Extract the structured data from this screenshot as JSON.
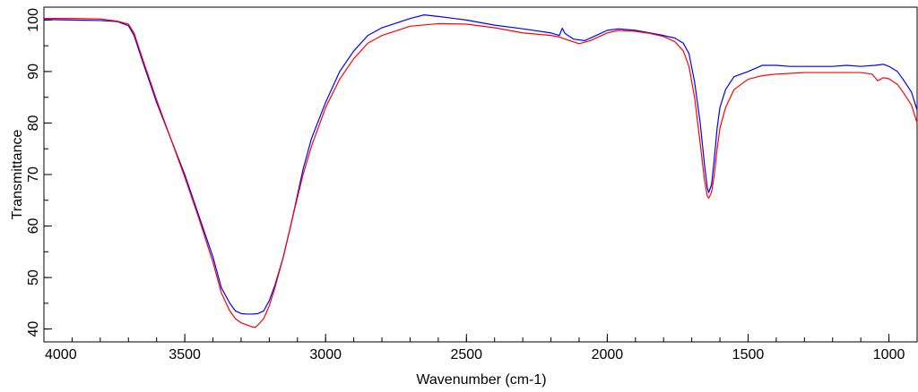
{
  "chart_data": {
    "type": "line",
    "xlabel": "Wavenumber (cm-1)",
    "ylabel": "Transmittance",
    "xlim": [
      4000,
      900
    ],
    "ylim": [
      37.5,
      102.5
    ],
    "x_ticks": [
      4000,
      3500,
      3000,
      2500,
      2000,
      1500,
      1000
    ],
    "x_minor_step": 100,
    "y_ticks": [
      40,
      50,
      60,
      70,
      80,
      90,
      100
    ],
    "y_minor_step": 5,
    "grid": false,
    "legend": "none",
    "series": [
      {
        "color": "#0000ff",
        "points": [
          [
            4000,
            100.1
          ],
          [
            3900,
            100.0
          ],
          [
            3800,
            99.9
          ],
          [
            3740,
            99.7
          ],
          [
            3700,
            98.9
          ],
          [
            3680,
            97.0
          ],
          [
            3650,
            92
          ],
          [
            3600,
            84
          ],
          [
            3550,
            77
          ],
          [
            3500,
            70
          ],
          [
            3450,
            62
          ],
          [
            3400,
            54
          ],
          [
            3370,
            48
          ],
          [
            3340,
            45
          ],
          [
            3320,
            43.5
          ],
          [
            3300,
            43.0
          ],
          [
            3280,
            42.9
          ],
          [
            3260,
            42.9
          ],
          [
            3240,
            43.0
          ],
          [
            3220,
            43.5
          ],
          [
            3200,
            45.5
          ],
          [
            3180,
            48.5
          ],
          [
            3150,
            54
          ],
          [
            3120,
            61
          ],
          [
            3100,
            66
          ],
          [
            3080,
            71
          ],
          [
            3050,
            77
          ],
          [
            3000,
            84
          ],
          [
            2950,
            90
          ],
          [
            2900,
            94
          ],
          [
            2850,
            97.0
          ],
          [
            2800,
            98.5
          ],
          [
            2700,
            100.3
          ],
          [
            2650,
            101.0
          ],
          [
            2600,
            100.7
          ],
          [
            2500,
            100.0
          ],
          [
            2400,
            99.0
          ],
          [
            2300,
            98.3
          ],
          [
            2200,
            97.5
          ],
          [
            2170,
            97.0
          ],
          [
            2160,
            98.4
          ],
          [
            2150,
            97.4
          ],
          [
            2120,
            96.3
          ],
          [
            2080,
            96.0
          ],
          [
            2060,
            96.5
          ],
          [
            2040,
            97.0
          ],
          [
            2000,
            98.0
          ],
          [
            1960,
            98.3
          ],
          [
            1900,
            98.0
          ],
          [
            1850,
            97.5
          ],
          [
            1800,
            97.0
          ],
          [
            1760,
            96.5
          ],
          [
            1730,
            95.5
          ],
          [
            1710,
            93.5
          ],
          [
            1690,
            88
          ],
          [
            1670,
            80
          ],
          [
            1655,
            72
          ],
          [
            1645,
            67.5
          ],
          [
            1640,
            66.5
          ],
          [
            1630,
            68
          ],
          [
            1620,
            73
          ],
          [
            1610,
            79
          ],
          [
            1600,
            83
          ],
          [
            1580,
            86.5
          ],
          [
            1550,
            89
          ],
          [
            1500,
            90
          ],
          [
            1450,
            91.2
          ],
          [
            1400,
            91.2
          ],
          [
            1350,
            91.0
          ],
          [
            1300,
            91.0
          ],
          [
            1250,
            91.0
          ],
          [
            1200,
            91.0
          ],
          [
            1150,
            91.2
          ],
          [
            1100,
            91.0
          ],
          [
            1050,
            91.2
          ],
          [
            1020,
            91.4
          ],
          [
            1000,
            91.0
          ],
          [
            970,
            90.0
          ],
          [
            950,
            88.5
          ],
          [
            920,
            86
          ],
          [
            900,
            82.5
          ]
        ]
      },
      {
        "color": "#ff0000",
        "points": [
          [
            4000,
            100.3
          ],
          [
            3900,
            100.3
          ],
          [
            3800,
            100.2
          ],
          [
            3740,
            99.8
          ],
          [
            3700,
            99.2
          ],
          [
            3680,
            97.5
          ],
          [
            3650,
            92.5
          ],
          [
            3600,
            84.5
          ],
          [
            3550,
            77
          ],
          [
            3500,
            69.5
          ],
          [
            3450,
            61.5
          ],
          [
            3400,
            53
          ],
          [
            3370,
            47
          ],
          [
            3340,
            43.5
          ],
          [
            3320,
            42.0
          ],
          [
            3300,
            41.2
          ],
          [
            3280,
            40.8
          ],
          [
            3260,
            40.4
          ],
          [
            3250,
            40.3
          ],
          [
            3240,
            40.8
          ],
          [
            3220,
            42.0
          ],
          [
            3200,
            44.5
          ],
          [
            3180,
            48
          ],
          [
            3150,
            54
          ],
          [
            3120,
            61
          ],
          [
            3100,
            65.5
          ],
          [
            3080,
            70
          ],
          [
            3050,
            75.5
          ],
          [
            3000,
            83
          ],
          [
            2950,
            88.5
          ],
          [
            2900,
            92.5
          ],
          [
            2850,
            95.5
          ],
          [
            2800,
            97.0
          ],
          [
            2700,
            98.8
          ],
          [
            2600,
            99.3
          ],
          [
            2500,
            99.2
          ],
          [
            2400,
            98.5
          ],
          [
            2300,
            97.5
          ],
          [
            2200,
            97.0
          ],
          [
            2170,
            96.7
          ],
          [
            2150,
            96.3
          ],
          [
            2100,
            95.4
          ],
          [
            2060,
            96.0
          ],
          [
            2000,
            97.5
          ],
          [
            1960,
            98.0
          ],
          [
            1900,
            97.8
          ],
          [
            1850,
            97.4
          ],
          [
            1800,
            96.8
          ],
          [
            1760,
            95.8
          ],
          [
            1730,
            94.0
          ],
          [
            1710,
            91.0
          ],
          [
            1690,
            85
          ],
          [
            1670,
            76
          ],
          [
            1655,
            69
          ],
          [
            1645,
            65.8
          ],
          [
            1640,
            65.4
          ],
          [
            1630,
            66.5
          ],
          [
            1620,
            70
          ],
          [
            1610,
            75
          ],
          [
            1600,
            79
          ],
          [
            1580,
            83
          ],
          [
            1550,
            86.5
          ],
          [
            1500,
            88.5
          ],
          [
            1450,
            89.2
          ],
          [
            1400,
            89.5
          ],
          [
            1300,
            89.8
          ],
          [
            1200,
            89.8
          ],
          [
            1100,
            89.8
          ],
          [
            1060,
            89.5
          ],
          [
            1040,
            88.2
          ],
          [
            1020,
            88.8
          ],
          [
            1000,
            88.6
          ],
          [
            970,
            87.5
          ],
          [
            950,
            86
          ],
          [
            920,
            83.5
          ],
          [
            900,
            80
          ]
        ]
      }
    ]
  }
}
